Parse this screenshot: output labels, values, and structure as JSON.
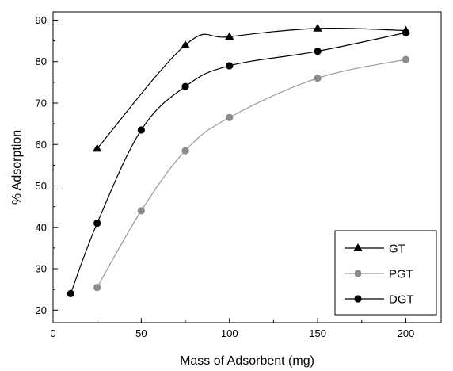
{
  "chart_data": {
    "type": "line",
    "title": "",
    "xlabel": "Mass of Adsorbent (mg)",
    "ylabel": "% Adsorption",
    "xlim": [
      0,
      220
    ],
    "ylim": [
      17,
      92
    ],
    "xticks": [
      0,
      50,
      100,
      150,
      200
    ],
    "yticks": [
      20,
      30,
      40,
      50,
      60,
      70,
      80,
      90
    ],
    "x_tick_labels": [
      "0",
      "50",
      "100",
      "150",
      "200"
    ],
    "y_tick_labels": [
      "20",
      "30",
      "40",
      "50",
      "60",
      "70",
      "80",
      "90"
    ],
    "grid": false,
    "legend_position": "bottom-right",
    "series": [
      {
        "name": "GT",
        "marker": "triangle",
        "color": "#000000",
        "line_color": "#000000",
        "x": [
          25,
          75,
          100,
          150,
          200
        ],
        "y": [
          59,
          84,
          86,
          88,
          87.5
        ]
      },
      {
        "name": "PGT",
        "marker": "circle",
        "color": "#8c8c8c",
        "line_color": "#9a9a9a",
        "x": [
          25,
          50,
          75,
          100,
          150,
          200
        ],
        "y": [
          25.5,
          44,
          58.5,
          66.5,
          76,
          80.5
        ]
      },
      {
        "name": "DGT",
        "marker": "circle",
        "color": "#000000",
        "line_color": "#000000",
        "x": [
          10,
          25,
          50,
          75,
          100,
          150,
          200
        ],
        "y": [
          24,
          41,
          63.5,
          74,
          79,
          82.5,
          87
        ]
      }
    ]
  }
}
